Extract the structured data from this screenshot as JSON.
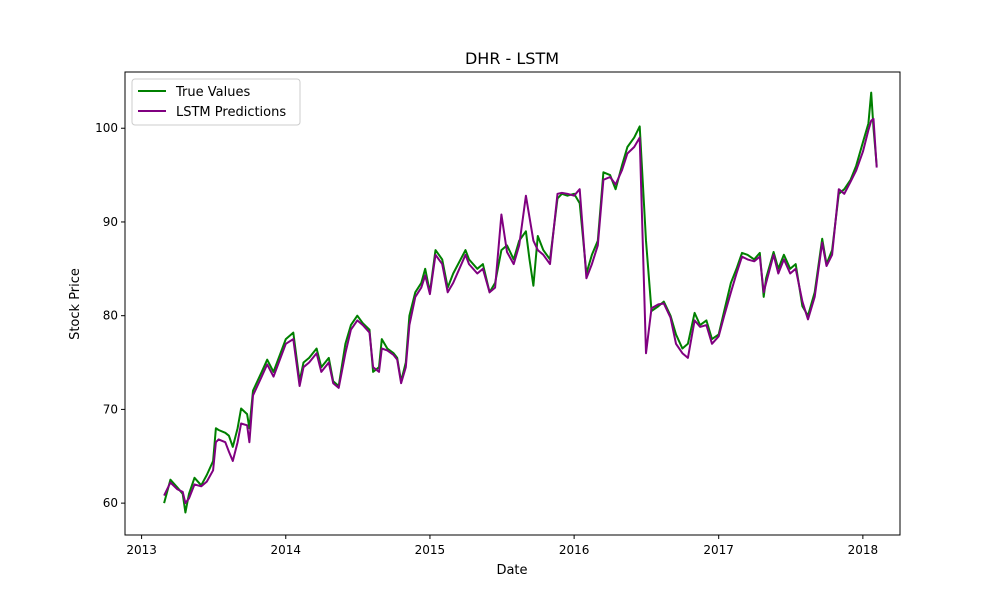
{
  "chart_data": {
    "type": "line",
    "title": "DHR - LSTM",
    "xlabel": "Date",
    "ylabel": "Stock Price",
    "x_ticks": [
      "2013",
      "2014",
      "2015",
      "2016",
      "2017",
      "2018"
    ],
    "y_ticks": [
      60,
      70,
      80,
      90,
      100
    ],
    "xlim": [
      "2012-11-20",
      "2018-04-05"
    ],
    "ylim": [
      56.6,
      106.0
    ],
    "grid": false,
    "legend_position": "upper-left",
    "series": [
      {
        "name": "True Values",
        "color": "#008000",
        "points": [
          [
            "2013-02-27",
            60.0
          ],
          [
            "2013-03-15",
            62.5
          ],
          [
            "2013-04-01",
            61.7
          ],
          [
            "2013-04-15",
            61.0
          ],
          [
            "2013-04-22",
            59.0
          ],
          [
            "2013-05-01",
            61.0
          ],
          [
            "2013-05-15",
            62.7
          ],
          [
            "2013-06-01",
            61.9
          ],
          [
            "2013-06-15",
            63.0
          ],
          [
            "2013-07-01",
            64.5
          ],
          [
            "2013-07-08",
            68.0
          ],
          [
            "2013-07-15",
            67.8
          ],
          [
            "2013-08-01",
            67.5
          ],
          [
            "2013-08-10",
            67.2
          ],
          [
            "2013-08-20",
            66.0
          ],
          [
            "2013-09-01",
            68.0
          ],
          [
            "2013-09-10",
            70.1
          ],
          [
            "2013-09-25",
            69.5
          ],
          [
            "2013-10-01",
            68.0
          ],
          [
            "2013-10-10",
            72.0
          ],
          [
            "2013-11-01",
            74.0
          ],
          [
            "2013-11-15",
            75.3
          ],
          [
            "2013-12-01",
            74.0
          ],
          [
            "2014-01-01",
            77.5
          ],
          [
            "2014-01-20",
            78.2
          ],
          [
            "2014-02-05",
            73.0
          ],
          [
            "2014-02-15",
            75.0
          ],
          [
            "2014-03-01",
            75.5
          ],
          [
            "2014-03-20",
            76.5
          ],
          [
            "2014-04-01",
            74.5
          ],
          [
            "2014-04-20",
            75.5
          ],
          [
            "2014-05-01",
            73.0
          ],
          [
            "2014-05-15",
            72.5
          ],
          [
            "2014-06-01",
            77.0
          ],
          [
            "2014-06-15",
            79.0
          ],
          [
            "2014-07-01",
            80.0
          ],
          [
            "2014-07-15",
            79.2
          ],
          [
            "2014-08-01",
            78.5
          ],
          [
            "2014-08-10",
            74.0
          ],
          [
            "2014-08-25",
            74.5
          ],
          [
            "2014-09-01",
            77.5
          ],
          [
            "2014-09-15",
            76.5
          ],
          [
            "2014-10-01",
            76.0
          ],
          [
            "2014-10-10",
            75.5
          ],
          [
            "2014-10-20",
            73.0
          ],
          [
            "2014-11-01",
            75.0
          ],
          [
            "2014-11-10",
            80.0
          ],
          [
            "2014-11-25",
            82.5
          ],
          [
            "2014-12-10",
            83.5
          ],
          [
            "2014-12-20",
            85.0
          ],
          [
            "2015-01-01",
            82.5
          ],
          [
            "2015-01-15",
            87.0
          ],
          [
            "2015-02-01",
            86.0
          ],
          [
            "2015-02-15",
            83.0
          ],
          [
            "2015-03-01",
            84.5
          ],
          [
            "2015-04-01",
            87.0
          ],
          [
            "2015-04-10",
            86.0
          ],
          [
            "2015-05-01",
            85.0
          ],
          [
            "2015-05-15",
            85.5
          ],
          [
            "2015-06-01",
            82.5
          ],
          [
            "2015-06-15",
            83.5
          ],
          [
            "2015-07-01",
            87.0
          ],
          [
            "2015-07-15",
            87.5
          ],
          [
            "2015-08-01",
            86.0
          ],
          [
            "2015-08-15",
            88.0
          ],
          [
            "2015-09-01",
            89.0
          ],
          [
            "2015-09-10",
            86.0
          ],
          [
            "2015-09-20",
            83.2
          ],
          [
            "2015-10-01",
            88.5
          ],
          [
            "2015-10-15",
            87.0
          ],
          [
            "2015-11-01",
            86.0
          ],
          [
            "2015-11-20",
            92.5
          ],
          [
            "2015-12-01",
            93.0
          ],
          [
            "2015-12-15",
            92.8
          ],
          [
            "2016-01-01",
            93.0
          ],
          [
            "2016-01-15",
            92.0
          ],
          [
            "2016-02-01",
            84.5
          ],
          [
            "2016-02-15",
            86.5
          ],
          [
            "2016-03-01",
            88.0
          ],
          [
            "2016-03-15",
            95.3
          ],
          [
            "2016-04-01",
            95.0
          ],
          [
            "2016-04-15",
            93.5
          ],
          [
            "2016-05-01",
            96.0
          ],
          [
            "2016-05-15",
            98.0
          ],
          [
            "2016-06-01",
            99.0
          ],
          [
            "2016-06-15",
            100.2
          ],
          [
            "2016-07-01",
            88.0
          ],
          [
            "2016-07-15",
            80.5
          ],
          [
            "2016-08-01",
            81.0
          ],
          [
            "2016-08-15",
            81.5
          ],
          [
            "2016-09-01",
            80.0
          ],
          [
            "2016-09-15",
            78.0
          ],
          [
            "2016-10-01",
            76.5
          ],
          [
            "2016-10-15",
            77.0
          ],
          [
            "2016-11-01",
            80.3
          ],
          [
            "2016-11-15",
            79.0
          ],
          [
            "2016-12-01",
            79.5
          ],
          [
            "2016-12-15",
            77.5
          ],
          [
            "2017-01-01",
            78.0
          ],
          [
            "2017-01-15",
            80.5
          ],
          [
            "2017-02-01",
            83.5
          ],
          [
            "2017-02-15",
            85.0
          ],
          [
            "2017-03-01",
            86.7
          ],
          [
            "2017-03-15",
            86.5
          ],
          [
            "2017-04-01",
            86.0
          ],
          [
            "2017-04-15",
            86.7
          ],
          [
            "2017-04-25",
            82.0
          ],
          [
            "2017-05-01",
            84.0
          ],
          [
            "2017-05-20",
            86.8
          ],
          [
            "2017-06-01",
            85.0
          ],
          [
            "2017-06-15",
            86.5
          ],
          [
            "2017-07-01",
            85.0
          ],
          [
            "2017-07-15",
            85.5
          ],
          [
            "2017-08-01",
            81.0
          ],
          [
            "2017-08-15",
            80.0
          ],
          [
            "2017-09-01",
            82.5
          ],
          [
            "2017-09-20",
            88.2
          ],
          [
            "2017-10-01",
            85.5
          ],
          [
            "2017-10-15",
            87.0
          ],
          [
            "2017-11-01",
            93.0
          ],
          [
            "2017-11-15",
            93.5
          ],
          [
            "2017-12-01",
            94.5
          ],
          [
            "2017-12-15",
            96.0
          ],
          [
            "2018-01-01",
            98.5
          ],
          [
            "2018-01-15",
            100.5
          ],
          [
            "2018-01-22",
            103.8
          ],
          [
            "2018-01-28",
            100.0
          ],
          [
            "2018-02-05",
            96.0
          ]
        ]
      },
      {
        "name": "LSTM Predictions",
        "color": "#800080",
        "points": [
          [
            "2013-02-27",
            60.8
          ],
          [
            "2013-03-15",
            62.2
          ],
          [
            "2013-04-01",
            61.5
          ],
          [
            "2013-04-15",
            61.2
          ],
          [
            "2013-04-22",
            60.0
          ],
          [
            "2013-05-01",
            60.5
          ],
          [
            "2013-05-15",
            62.0
          ],
          [
            "2013-06-01",
            61.8
          ],
          [
            "2013-06-15",
            62.3
          ],
          [
            "2013-07-01",
            63.5
          ],
          [
            "2013-07-08",
            66.5
          ],
          [
            "2013-07-15",
            66.8
          ],
          [
            "2013-08-01",
            66.5
          ],
          [
            "2013-08-10",
            65.5
          ],
          [
            "2013-08-20",
            64.5
          ],
          [
            "2013-09-01",
            66.5
          ],
          [
            "2013-09-10",
            68.5
          ],
          [
            "2013-09-25",
            68.3
          ],
          [
            "2013-10-01",
            66.5
          ],
          [
            "2013-10-10",
            71.5
          ],
          [
            "2013-11-01",
            73.5
          ],
          [
            "2013-11-15",
            74.8
          ],
          [
            "2013-12-01",
            73.5
          ],
          [
            "2014-01-01",
            77.0
          ],
          [
            "2014-01-20",
            77.5
          ],
          [
            "2014-02-05",
            72.5
          ],
          [
            "2014-02-15",
            74.5
          ],
          [
            "2014-03-01",
            75.0
          ],
          [
            "2014-03-20",
            76.0
          ],
          [
            "2014-04-01",
            74.0
          ],
          [
            "2014-04-20",
            75.0
          ],
          [
            "2014-05-01",
            72.8
          ],
          [
            "2014-05-15",
            72.3
          ],
          [
            "2014-06-01",
            76.0
          ],
          [
            "2014-06-15",
            78.5
          ],
          [
            "2014-07-01",
            79.5
          ],
          [
            "2014-07-15",
            79.0
          ],
          [
            "2014-08-01",
            78.2
          ],
          [
            "2014-08-10",
            74.5
          ],
          [
            "2014-08-25",
            74.0
          ],
          [
            "2014-09-01",
            76.5
          ],
          [
            "2014-09-15",
            76.3
          ],
          [
            "2014-10-01",
            75.8
          ],
          [
            "2014-10-10",
            75.3
          ],
          [
            "2014-10-20",
            72.8
          ],
          [
            "2014-11-01",
            74.5
          ],
          [
            "2014-11-10",
            79.0
          ],
          [
            "2014-11-25",
            82.0
          ],
          [
            "2014-12-10",
            83.0
          ],
          [
            "2014-12-20",
            84.3
          ],
          [
            "2015-01-01",
            82.3
          ],
          [
            "2015-01-15",
            86.5
          ],
          [
            "2015-02-01",
            85.5
          ],
          [
            "2015-02-15",
            82.5
          ],
          [
            "2015-03-01",
            83.5
          ],
          [
            "2015-04-01",
            86.5
          ],
          [
            "2015-04-10",
            85.5
          ],
          [
            "2015-05-01",
            84.5
          ],
          [
            "2015-05-15",
            85.0
          ],
          [
            "2015-06-01",
            82.5
          ],
          [
            "2015-06-15",
            83.0
          ],
          [
            "2015-07-01",
            90.8
          ],
          [
            "2015-07-15",
            86.8
          ],
          [
            "2015-08-01",
            85.5
          ],
          [
            "2015-08-15",
            87.5
          ],
          [
            "2015-09-01",
            92.8
          ],
          [
            "2015-09-10",
            90.5
          ],
          [
            "2015-09-20",
            88.0
          ],
          [
            "2015-10-01",
            87.0
          ],
          [
            "2015-10-15",
            86.5
          ],
          [
            "2015-11-01",
            85.5
          ],
          [
            "2015-11-20",
            93.0
          ],
          [
            "2015-12-01",
            93.1
          ],
          [
            "2015-12-15",
            93.0
          ],
          [
            "2016-01-01",
            92.8
          ],
          [
            "2016-01-15",
            93.5
          ],
          [
            "2016-02-01",
            84.0
          ],
          [
            "2016-02-15",
            85.5
          ],
          [
            "2016-03-01",
            87.5
          ],
          [
            "2016-03-15",
            94.5
          ],
          [
            "2016-04-01",
            94.8
          ],
          [
            "2016-04-15",
            94.0
          ],
          [
            "2016-05-01",
            95.5
          ],
          [
            "2016-05-15",
            97.3
          ],
          [
            "2016-06-01",
            98.0
          ],
          [
            "2016-06-15",
            99.0
          ],
          [
            "2016-07-01",
            76.0
          ],
          [
            "2016-07-15",
            80.8
          ],
          [
            "2016-08-01",
            81.2
          ],
          [
            "2016-08-15",
            81.3
          ],
          [
            "2016-09-01",
            79.8
          ],
          [
            "2016-09-15",
            77.0
          ],
          [
            "2016-10-01",
            76.0
          ],
          [
            "2016-10-15",
            75.5
          ],
          [
            "2016-11-01",
            79.5
          ],
          [
            "2016-11-15",
            78.8
          ],
          [
            "2016-12-01",
            79.0
          ],
          [
            "2016-12-15",
            77.0
          ],
          [
            "2017-01-01",
            77.8
          ],
          [
            "2017-01-15",
            80.0
          ],
          [
            "2017-02-01",
            82.5
          ],
          [
            "2017-02-15",
            84.5
          ],
          [
            "2017-03-01",
            86.3
          ],
          [
            "2017-03-15",
            86.0
          ],
          [
            "2017-04-01",
            85.8
          ],
          [
            "2017-04-15",
            86.3
          ],
          [
            "2017-04-25",
            82.5
          ],
          [
            "2017-05-01",
            83.5
          ],
          [
            "2017-05-20",
            86.5
          ],
          [
            "2017-06-01",
            84.5
          ],
          [
            "2017-06-15",
            86.0
          ],
          [
            "2017-07-01",
            84.5
          ],
          [
            "2017-07-15",
            85.0
          ],
          [
            "2017-08-01",
            81.5
          ],
          [
            "2017-08-15",
            79.6
          ],
          [
            "2017-09-01",
            82.0
          ],
          [
            "2017-09-20",
            87.8
          ],
          [
            "2017-10-01",
            85.3
          ],
          [
            "2017-10-15",
            86.5
          ],
          [
            "2017-11-01",
            93.5
          ],
          [
            "2017-11-15",
            93.0
          ],
          [
            "2017-12-01",
            94.3
          ],
          [
            "2017-12-15",
            95.5
          ],
          [
            "2018-01-01",
            97.5
          ],
          [
            "2018-01-15",
            99.8
          ],
          [
            "2018-01-22",
            100.8
          ],
          [
            "2018-01-28",
            101.0
          ],
          [
            "2018-02-05",
            95.8
          ]
        ]
      }
    ]
  }
}
